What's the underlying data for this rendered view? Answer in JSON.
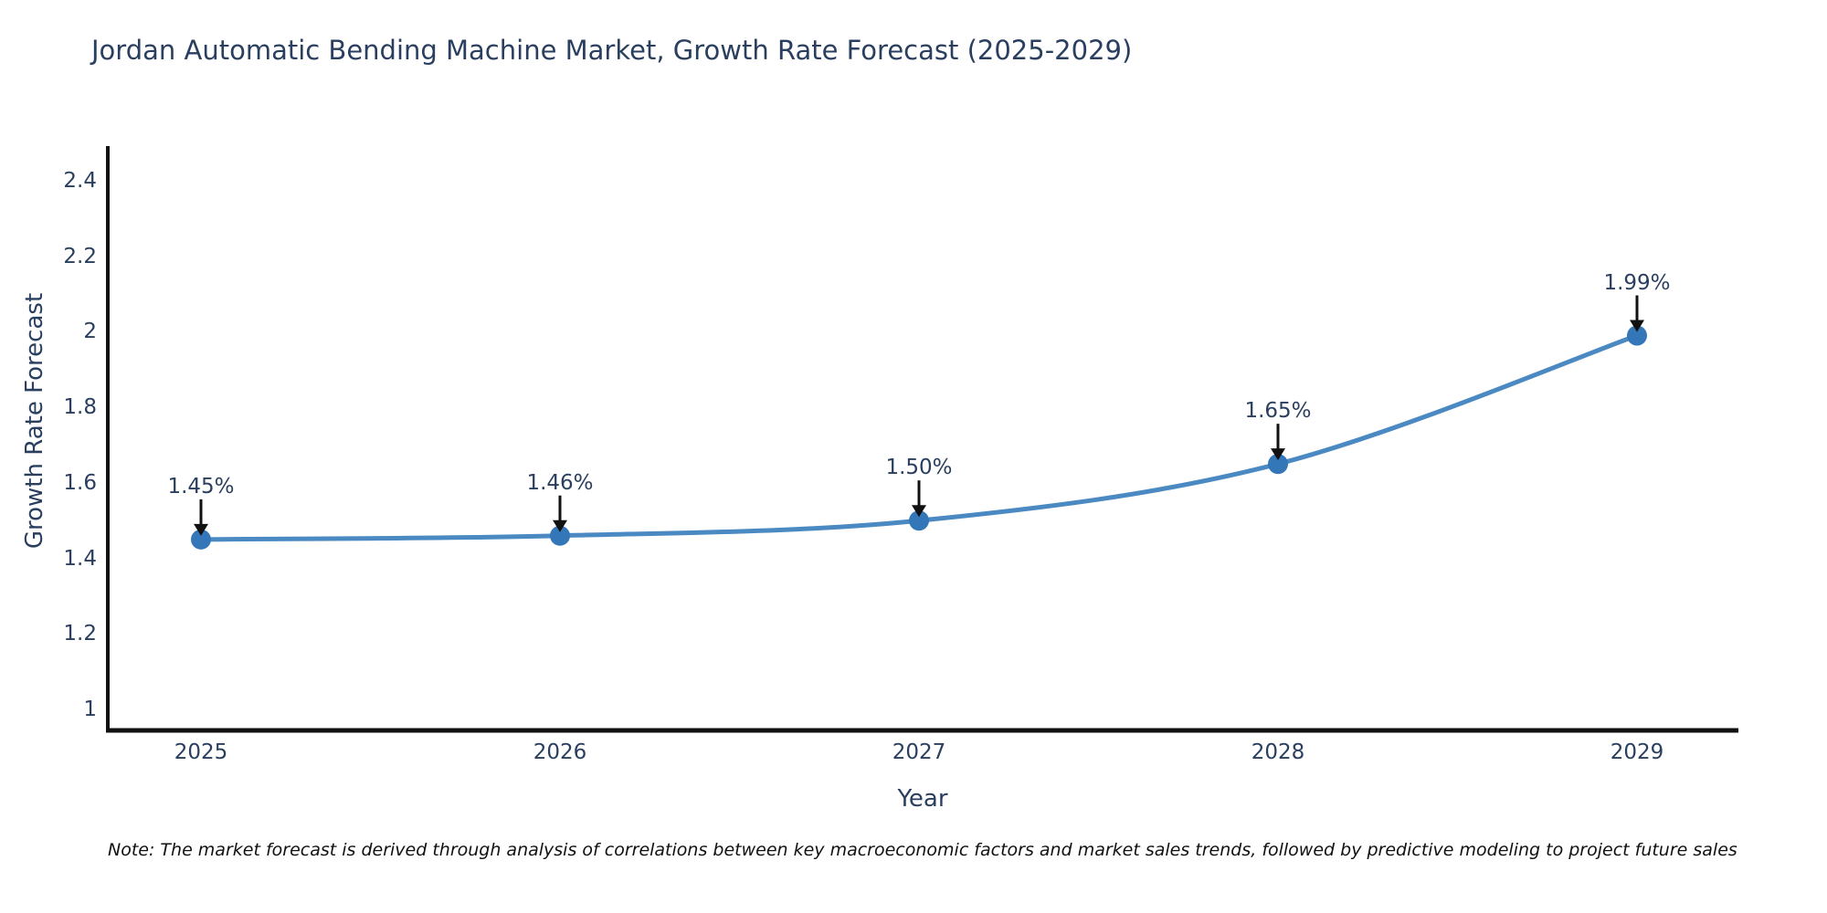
{
  "page": {
    "background_color": "#ffffff"
  },
  "chart_data": {
    "type": "line",
    "title": "Jordan Automatic Bending Machine Market, Growth Rate Forecast (2025-2029)",
    "xlabel": "Year",
    "ylabel": "Growth Rate Forecast",
    "categories": [
      "2025",
      "2026",
      "2027",
      "2028",
      "2029"
    ],
    "series": [
      {
        "name": "Growth Rate Forecast",
        "values": [
          1.45,
          1.46,
          1.5,
          1.65,
          1.99
        ]
      }
    ],
    "point_labels": [
      "1.45%",
      "1.46%",
      "1.50%",
      "1.65%",
      "1.99%"
    ],
    "ytick_values": [
      1,
      1.2,
      1.4,
      1.6,
      1.8,
      2,
      2.2,
      2.4
    ],
    "ytick_labels": [
      "1",
      "1.2",
      "1.4",
      "1.6",
      "1.8",
      "2",
      "2.2",
      "2.4"
    ],
    "ylim": [
      0.94,
      2.49
    ],
    "grid": false,
    "legend_position": "none",
    "line_shape": "spline",
    "annotation_arrows": true,
    "colors": {
      "line": "#4a89c2",
      "marker": "#3477b8",
      "axis": "#111111",
      "text": "#2a3f5f",
      "arrow": "#111111",
      "note": "#111111"
    },
    "note": "Note: The market forecast is derived through analysis of correlations between key macroeconomic factors and market sales trends, followed by predictive modeling to project future sales"
  }
}
